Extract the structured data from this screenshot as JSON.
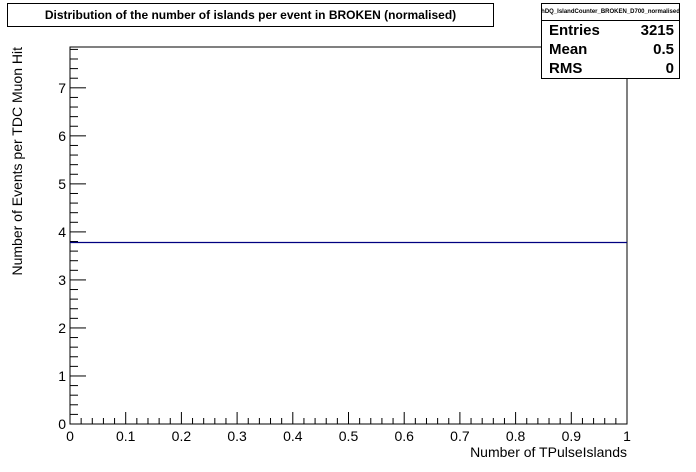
{
  "chart_data": {
    "type": "line",
    "title": "Distribution of the number of islands per event in BROKEN (normalised)",
    "xlabel": "Number of TPulseIslands",
    "ylabel": "Number of Events per TDC Muon Hit",
    "xlim": [
      0,
      1
    ],
    "ylim": [
      0,
      7.85
    ],
    "x_ticks": [
      "0",
      "0.1",
      "0.2",
      "0.3",
      "0.4",
      "0.5",
      "0.6",
      "0.7",
      "0.8",
      "0.9",
      "1"
    ],
    "y_ticks": [
      "0",
      "1",
      "2",
      "3",
      "4",
      "5",
      "6",
      "7"
    ],
    "series": [
      {
        "x": [
          0,
          1
        ],
        "values": [
          3.78,
          3.78
        ],
        "color": "#000080"
      }
    ],
    "grid": false,
    "legend": "none"
  },
  "stats": {
    "name": "hDQ_IslandCounter_BROKEN_D700_normalised",
    "rows": [
      {
        "label": "Entries",
        "value": "3215"
      },
      {
        "label": "Mean",
        "value": "0.5"
      },
      {
        "label": "RMS",
        "value": "0"
      }
    ]
  }
}
